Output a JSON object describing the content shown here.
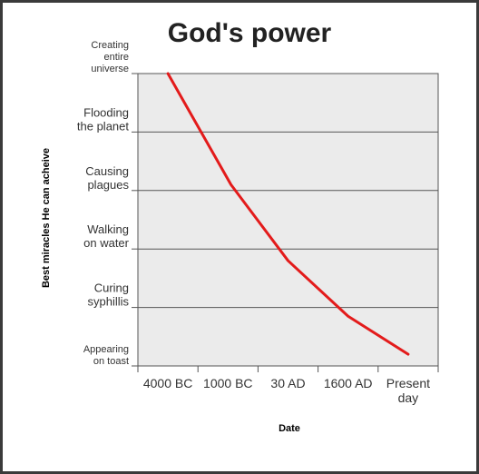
{
  "chart_data": {
    "type": "line",
    "title": "God's power",
    "xlabel": "Date",
    "ylabel": "Best miracles He can acheive",
    "categories": [
      "4000 BC",
      "1000 BC",
      "30 AD",
      "1600 AD",
      "Present day"
    ],
    "y_levels": [
      "Appearing on toast",
      "Curing syphillis",
      "Walking on water",
      "Causing plagues",
      "Flooding the planet",
      "Creating entire universe"
    ],
    "series": [
      {
        "color": "#e31b1b",
        "points": [
          {
            "x": 0.5,
            "y": 5
          },
          {
            "x": 1.55,
            "y": 3.1
          },
          {
            "x": 2.5,
            "y": 1.8
          },
          {
            "x": 3.5,
            "y": 0.85
          },
          {
            "x": 4.5,
            "y": 0.2
          }
        ]
      }
    ],
    "ylim": [
      0,
      5
    ],
    "xlim": [
      0,
      5
    ],
    "grid": "horizontal",
    "legend": "none"
  },
  "colors": {
    "plot_background": "#ebebeb",
    "line": "#e31b1b",
    "grid": "#555555",
    "border": "#3a3a3a"
  }
}
